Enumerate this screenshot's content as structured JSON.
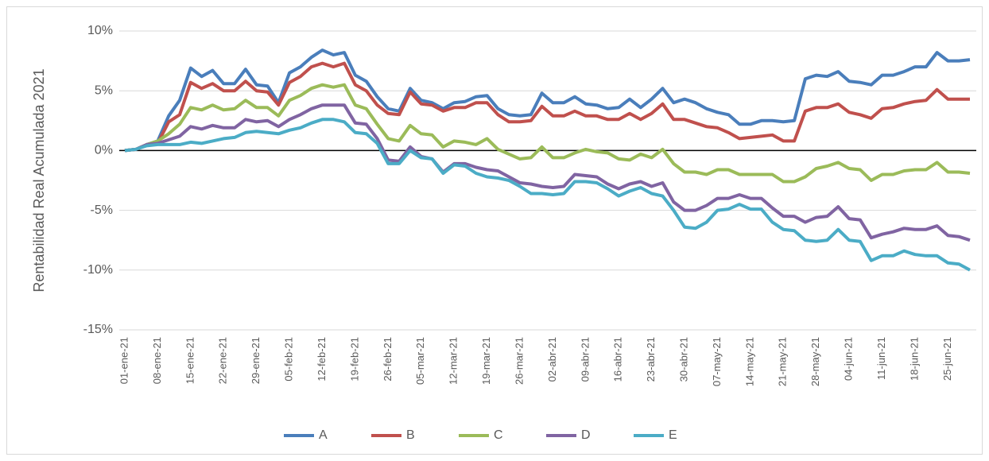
{
  "chart_data": {
    "type": "line",
    "y_axis_label": "Rentabilidad Real Acumulada 2021",
    "categories": [
      "01-ene-21",
      null,
      null,
      "08-ene-21",
      null,
      null,
      "15-ene-21",
      null,
      null,
      "22-ene-21",
      null,
      null,
      "29-ene-21",
      null,
      null,
      "05-feb-21",
      null,
      null,
      "12-feb-21",
      null,
      null,
      "19-feb-21",
      null,
      null,
      "26-feb-21",
      null,
      null,
      "05-mar-21",
      null,
      null,
      "12-mar-21",
      null,
      null,
      "19-mar-21",
      null,
      null,
      "26-mar-21",
      null,
      null,
      "02-abr-21",
      null,
      null,
      "09-abr-21",
      null,
      null,
      "16-abr-21",
      null,
      null,
      "23-abr-21",
      null,
      null,
      "30-abr-21",
      null,
      null,
      "07-may-21",
      null,
      null,
      "14-may-21",
      null,
      null,
      "21-may-21",
      null,
      null,
      "28-may-21",
      null,
      null,
      "04-jun-21",
      null,
      null,
      "11-jun-21",
      null,
      null,
      "18-jun-21",
      null,
      null,
      "25-jun-21",
      null,
      null
    ],
    "series": [
      {
        "name": "A",
        "color": "#4a7ebb",
        "values": [
          0,
          0.1,
          0.5,
          0.8,
          2.9,
          4.2,
          6.9,
          6.2,
          6.7,
          5.6,
          5.6,
          6.8,
          5.5,
          5.4,
          4.0,
          6.5,
          7.0,
          7.8,
          8.4,
          8.0,
          8.2,
          6.3,
          5.8,
          4.5,
          3.5,
          3.3,
          5.2,
          4.2,
          4.0,
          3.5,
          4.0,
          4.1,
          4.5,
          4.6,
          3.5,
          3.0,
          2.9,
          3.0,
          4.8,
          4.0,
          4.0,
          4.5,
          3.9,
          3.8,
          3.5,
          3.6,
          4.3,
          3.6,
          4.3,
          5.2,
          4.0,
          4.3,
          4.0,
          3.5,
          3.2,
          3.0,
          2.2,
          2.2,
          2.5,
          2.5,
          2.4,
          2.5,
          6.0,
          6.3,
          6.2,
          6.6,
          5.8,
          5.7,
          5.5,
          6.3,
          6.3,
          6.6,
          7.0,
          7.0,
          8.2,
          7.5,
          7.5,
          7.6
        ]
      },
      {
        "name": "B",
        "color": "#c0504d",
        "values": [
          0,
          0.1,
          0.5,
          0.6,
          2.4,
          3.0,
          5.7,
          5.2,
          5.6,
          5.0,
          5.0,
          5.8,
          5.0,
          4.9,
          3.8,
          5.7,
          6.2,
          7.0,
          7.3,
          7.0,
          7.3,
          5.5,
          5.0,
          3.8,
          3.1,
          3.0,
          4.9,
          3.9,
          3.8,
          3.3,
          3.6,
          3.6,
          4.0,
          4.0,
          3.0,
          2.4,
          2.4,
          2.5,
          3.7,
          2.9,
          2.9,
          3.3,
          2.9,
          2.9,
          2.6,
          2.6,
          3.1,
          2.6,
          3.1,
          3.9,
          2.6,
          2.6,
          2.3,
          2.0,
          1.9,
          1.5,
          1.0,
          1.1,
          1.2,
          1.3,
          0.8,
          0.8,
          3.3,
          3.6,
          3.6,
          3.9,
          3.2,
          3.0,
          2.7,
          3.5,
          3.6,
          3.9,
          4.1,
          4.2,
          5.1,
          4.3,
          4.3,
          4.3
        ]
      },
      {
        "name": "C",
        "color": "#9bbb59",
        "values": [
          0,
          0.1,
          0.5,
          0.8,
          1.4,
          2.2,
          3.6,
          3.4,
          3.8,
          3.4,
          3.5,
          4.2,
          3.6,
          3.6,
          2.9,
          4.2,
          4.6,
          5.2,
          5.5,
          5.3,
          5.5,
          3.8,
          3.5,
          2.2,
          1.0,
          0.8,
          2.1,
          1.4,
          1.3,
          0.3,
          0.8,
          0.7,
          0.5,
          1.0,
          0.1,
          -0.3,
          -0.7,
          -0.6,
          0.3,
          -0.6,
          -0.6,
          -0.2,
          0.1,
          -0.1,
          -0.2,
          -0.7,
          -0.8,
          -0.3,
          -0.6,
          0.1,
          -1.1,
          -1.8,
          -1.8,
          -2.0,
          -1.6,
          -1.6,
          -2.0,
          -2.0,
          -2.0,
          -2.0,
          -2.6,
          -2.6,
          -2.2,
          -1.5,
          -1.3,
          -1.0,
          -1.5,
          -1.6,
          -2.5,
          -2.0,
          -2.0,
          -1.7,
          -1.6,
          -1.6,
          -1.0,
          -1.8,
          -1.8,
          -1.9
        ]
      },
      {
        "name": "D",
        "color": "#8064a2",
        "values": [
          0,
          0.1,
          0.5,
          0.6,
          0.9,
          1.2,
          2.0,
          1.8,
          2.1,
          1.9,
          1.9,
          2.6,
          2.4,
          2.5,
          2.0,
          2.6,
          3.0,
          3.5,
          3.8,
          3.8,
          3.8,
          2.3,
          2.2,
          1.0,
          -0.8,
          -0.9,
          0.3,
          -0.5,
          -0.7,
          -1.8,
          -1.1,
          -1.1,
          -1.4,
          -1.6,
          -1.7,
          -2.2,
          -2.7,
          -2.8,
          -3.0,
          -3.1,
          -3.0,
          -2.0,
          -2.1,
          -2.2,
          -2.8,
          -3.2,
          -2.8,
          -2.6,
          -3.0,
          -2.7,
          -4.3,
          -5.0,
          -5.0,
          -4.6,
          -4.0,
          -4.0,
          -3.7,
          -4.0,
          -4.0,
          -4.8,
          -5.5,
          -5.5,
          -6.0,
          -5.6,
          -5.5,
          -4.7,
          -5.7,
          -5.8,
          -7.3,
          -7.0,
          -6.8,
          -6.5,
          -6.6,
          -6.6,
          -6.3,
          -7.1,
          -7.2,
          -7.5
        ]
      },
      {
        "name": "E",
        "color": "#4bacc6",
        "values": [
          0,
          0.1,
          0.4,
          0.5,
          0.5,
          0.5,
          0.7,
          0.6,
          0.8,
          1.0,
          1.1,
          1.5,
          1.6,
          1.5,
          1.4,
          1.7,
          1.9,
          2.3,
          2.6,
          2.6,
          2.4,
          1.5,
          1.4,
          0.6,
          -1.1,
          -1.1,
          0.0,
          -0.6,
          -0.7,
          -1.9,
          -1.2,
          -1.3,
          -1.9,
          -2.2,
          -2.3,
          -2.5,
          -3.0,
          -3.6,
          -3.6,
          -3.7,
          -3.6,
          -2.6,
          -2.6,
          -2.7,
          -3.2,
          -3.8,
          -3.4,
          -3.1,
          -3.6,
          -3.8,
          -5.0,
          -6.4,
          -6.5,
          -6.0,
          -5.0,
          -4.9,
          -4.5,
          -4.9,
          -4.9,
          -6.0,
          -6.6,
          -6.7,
          -7.5,
          -7.6,
          -7.5,
          -6.6,
          -7.5,
          -7.6,
          -9.2,
          -8.8,
          -8.8,
          -8.4,
          -8.7,
          -8.8,
          -8.8,
          -9.4,
          -9.5,
          -10.0
        ]
      }
    ],
    "ylim": [
      -15,
      10
    ],
    "yticks": [
      {
        "value": -15,
        "label": "-15%"
      },
      {
        "value": -10,
        "label": "-10%"
      },
      {
        "value": -5,
        "label": "-5%"
      },
      {
        "value": 0,
        "label": "0%"
      },
      {
        "value": 5,
        "label": "5%"
      },
      {
        "value": 10,
        "label": "10%"
      }
    ],
    "grid": true,
    "legend": "bottom"
  }
}
